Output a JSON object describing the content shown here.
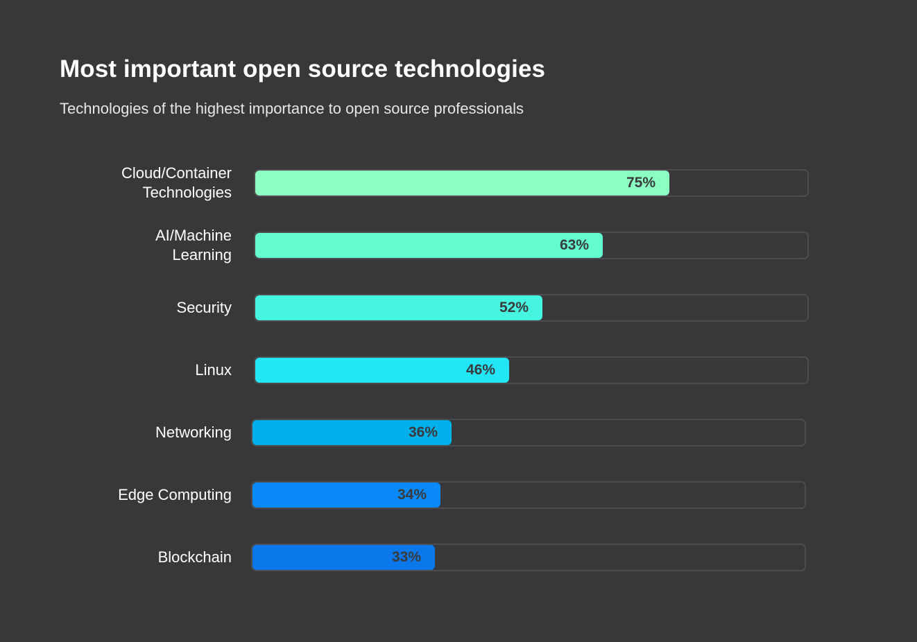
{
  "chart_data": {
    "type": "bar",
    "orientation": "horizontal",
    "title": "Most important open source technologies",
    "subtitle": "Technologies of the highest importance to open source professionals",
    "categories": [
      "Cloud/Container\nTechnologies",
      "AI/Machine\nLearning",
      "Security",
      "Linux",
      "Networking",
      "Edge Computing",
      "Blockchain"
    ],
    "values": [
      75,
      63,
      52,
      46,
      36,
      34,
      33
    ],
    "value_labels": [
      "75%",
      "63%",
      "52%",
      "46%",
      "36%",
      "34%",
      "33%"
    ],
    "colors": [
      "#8affc1",
      "#62fccf",
      "#45f5df",
      "#22e6f6",
      "#00b0ea",
      "#0a8afa",
      "#0a78ea"
    ],
    "xlim": [
      0,
      100
    ],
    "xlabel": "",
    "ylabel": "",
    "grid": false,
    "legend": "none"
  }
}
